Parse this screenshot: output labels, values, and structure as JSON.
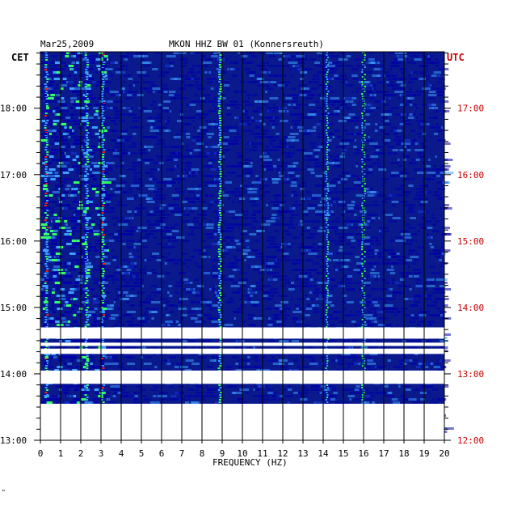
{
  "header": {
    "date": "Mar25,2009",
    "station": "MKON HHZ BW 01 (Konnersreuth)"
  },
  "axes": {
    "left_label": "CET",
    "right_label": "UTC",
    "xlabel": "FREQUENCY (HZ)"
  },
  "corner_mark": "\"",
  "colors": {
    "background": "#0a1a8c",
    "low": "#0000aa",
    "mid": "#3ca0ff",
    "high": "#33ff66",
    "peak": "#ff2200",
    "gap": "#ffffff",
    "left_axis_text": "#000000",
    "right_axis_text": "#cc0000"
  },
  "chart_data": {
    "type": "heatmap",
    "title": "MKON HHZ BW 01 (Konnersreuth)",
    "date": "Mar25,2009",
    "xlabel": "FREQUENCY (HZ)",
    "xlim": [
      0,
      20
    ],
    "x_ticks": [
      "0",
      "1",
      "2",
      "3",
      "4",
      "5",
      "6",
      "7",
      "8",
      "9",
      "10",
      "11",
      "12",
      "13",
      "14",
      "15",
      "16",
      "17",
      "18",
      "19",
      "20"
    ],
    "y_axis_left": {
      "label": "CET",
      "ticks": [
        "13:00",
        "14:00",
        "15:00",
        "16:00",
        "17:00",
        "18:00"
      ],
      "range_hours": [
        13.0,
        18.85
      ]
    },
    "y_axis_right": {
      "label": "UTC",
      "ticks": [
        "12:00",
        "13:00",
        "14:00",
        "15:00",
        "16:00",
        "17:00"
      ]
    },
    "data_gaps_cet_hours": [
      [
        13.0,
        13.55
      ],
      [
        13.85,
        14.05
      ],
      [
        14.3,
        14.38
      ],
      [
        14.42,
        14.47
      ],
      [
        14.53,
        14.7
      ]
    ],
    "dominant_bands_hz": [
      {
        "freq": 0.3,
        "level": "peak"
      },
      {
        "freq": 2.3,
        "level": "high"
      },
      {
        "freq": 3.1,
        "level": "peak"
      },
      {
        "freq": 8.9,
        "level": "high"
      },
      {
        "freq": 14.2,
        "level": "mid"
      },
      {
        "freq": 16.0,
        "level": "high"
      }
    ]
  }
}
